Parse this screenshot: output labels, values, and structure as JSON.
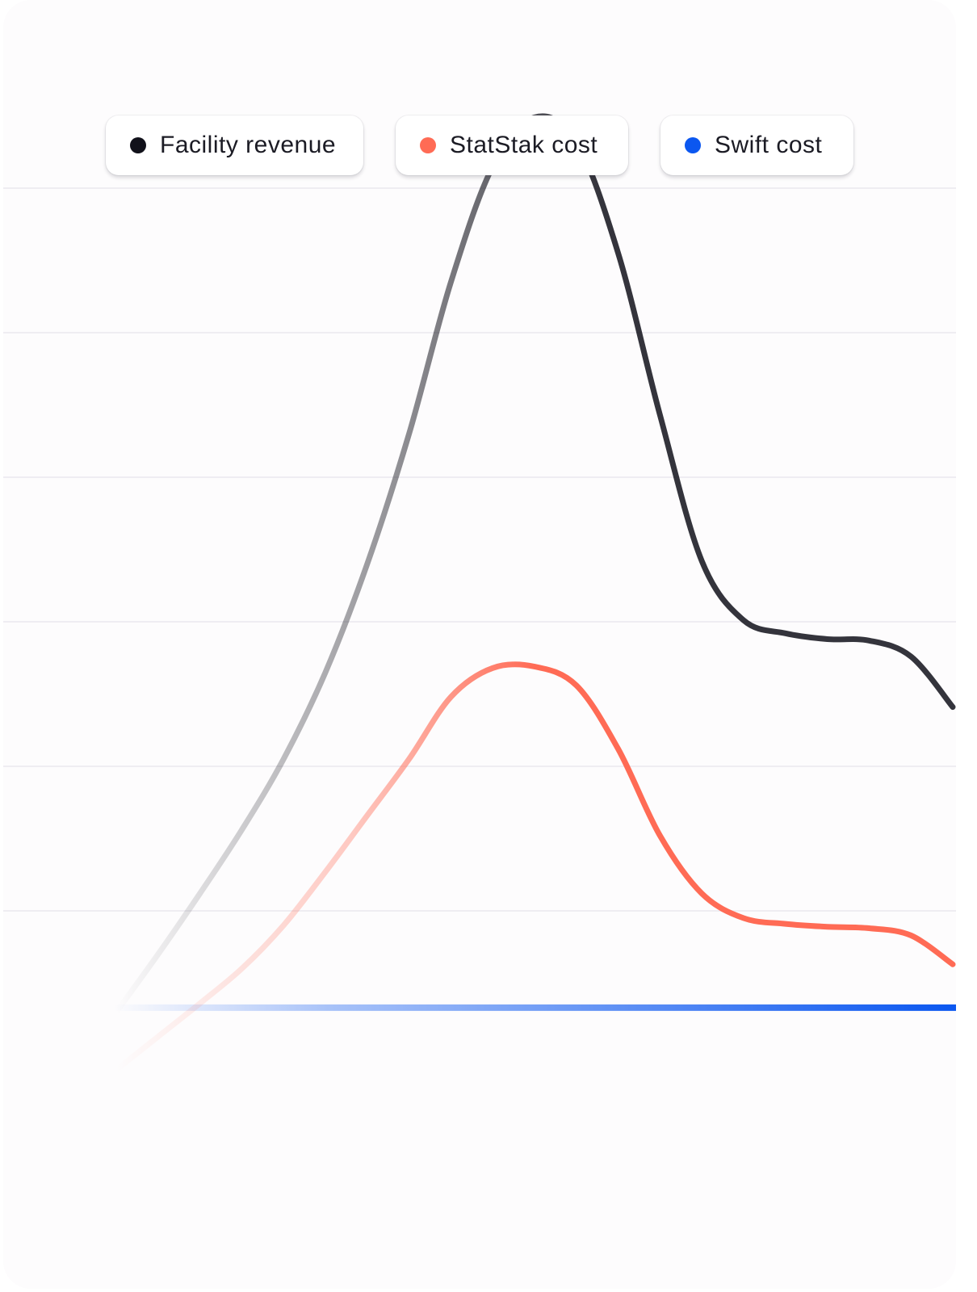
{
  "colors": {
    "card_background": "#fdfcfd",
    "gridline": "#efedf2",
    "legend_background": "#ffffff"
  },
  "chart_data": {
    "type": "line",
    "title": "",
    "xlabel": "",
    "ylabel": "",
    "grid": true,
    "legend_position": "top",
    "ylim": [
      0,
      100
    ],
    "y_gridlines": [
      10,
      20,
      30,
      40,
      50,
      60
    ],
    "x": [
      0,
      1,
      2,
      3,
      4,
      5,
      6,
      7,
      8,
      9,
      10,
      11,
      12,
      13,
      14,
      15,
      16,
      17,
      18,
      19,
      20
    ],
    "series": [
      {
        "name": "Facility revenue",
        "color": "#11111a",
        "values": [
          3,
          7,
          11.2,
          15.6,
          20.5,
          26.5,
          34,
          43,
          53.5,
          61.5,
          64.9,
          63.2,
          55.5,
          44.3,
          34.2,
          30.1,
          29.2,
          28.8,
          28.7,
          27.6,
          24.1
        ]
      },
      {
        "name": "StatStak cost",
        "color": "#ff6b55",
        "values": [
          -1,
          1.3,
          3.6,
          6,
          9,
          12.7,
          16.6,
          20.5,
          24.8,
          26.8,
          26.9,
          25.6,
          21.2,
          15.2,
          11.2,
          9.5,
          9.1,
          8.9,
          8.8,
          8.3,
          6.3
        ]
      },
      {
        "name": "Swift cost",
        "color": "#0b57f0",
        "values": [
          3.3,
          3.3,
          3.3,
          3.3,
          3.3,
          3.3,
          3.3,
          3.3,
          3.3,
          3.3,
          3.3,
          3.3,
          3.3,
          3.3,
          3.3,
          3.3,
          3.3,
          3.3,
          3.3,
          3.3,
          3.3
        ]
      }
    ]
  }
}
